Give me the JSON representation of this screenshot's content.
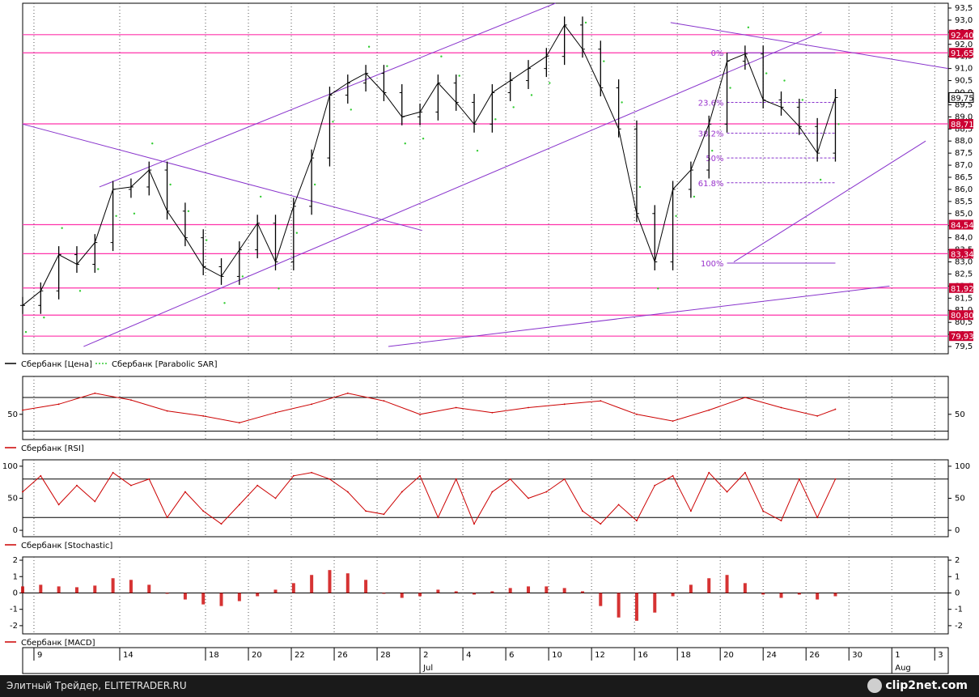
{
  "chart_data": [
    {
      "type": "candlestick",
      "name": "price-panel",
      "ylim": [
        79.2,
        93.7
      ],
      "yticks": [
        "93,5",
        "93,0",
        "92,5",
        "92,0",
        "91,5",
        "91,0",
        "90,5",
        "90,0",
        "89,5",
        "89,0",
        "88,5",
        "88,0",
        "87,5",
        "87,0",
        "86,5",
        "86,0",
        "85,5",
        "85,0",
        "84,5",
        "84,0",
        "83,5",
        "83,0",
        "82,5",
        "82,0",
        "81,5",
        "81,0",
        "80,5",
        "80,0",
        "79,5"
      ],
      "ytick_values": [
        93.5,
        93.0,
        92.5,
        92.0,
        91.5,
        91.0,
        90.5,
        90.0,
        89.5,
        89.0,
        88.5,
        88.0,
        87.5,
        87.0,
        86.5,
        86.0,
        85.5,
        85.0,
        84.5,
        84.0,
        83.5,
        83.0,
        82.5,
        82.0,
        81.5,
        81.0,
        80.5,
        80.0,
        79.5
      ],
      "x": [
        0,
        8,
        16,
        24,
        32,
        40,
        48,
        56,
        64,
        72,
        80,
        88,
        96,
        104,
        112,
        120,
        128,
        136,
        144,
        152,
        160,
        168,
        176,
        184,
        192,
        200,
        208,
        216,
        224,
        232,
        240,
        248,
        256,
        264,
        272,
        280,
        288,
        296,
        304,
        312,
        320,
        328,
        336,
        344,
        352,
        360
      ],
      "close": [
        81.2,
        81.8,
        83.3,
        82.9,
        83.8,
        86.0,
        86.1,
        86.8,
        85.1,
        84.0,
        82.8,
        82.4,
        83.5,
        84.6,
        83.0,
        85.3,
        87.3,
        89.9,
        90.4,
        90.8,
        90.0,
        89.0,
        89.2,
        90.4,
        89.6,
        88.7,
        90.0,
        90.5,
        91.0,
        91.5,
        92.8,
        91.8,
        90.2,
        88.5,
        85.0,
        83.0,
        86.0,
        86.8,
        88.7,
        91.3,
        91.6,
        89.7,
        89.4,
        88.6,
        87.5,
        89.8
      ],
      "close_label": "89,75",
      "horizontal_levels": [
        {
          "value": 92.4,
          "label": "92,40"
        },
        {
          "value": 91.65,
          "label": "91,65"
        },
        {
          "value": 88.71,
          "label": "88,71"
        },
        {
          "value": 84.54,
          "label": "84,54"
        },
        {
          "value": 83.34,
          "label": "83,34"
        },
        {
          "value": 81.92,
          "label": "81,92"
        },
        {
          "value": 80.8,
          "label": "80,80"
        },
        {
          "value": 79.93,
          "label": "79,93"
        }
      ],
      "fibonacci": {
        "high": 91.65,
        "low": 82.95,
        "levels": [
          {
            "ratio": 0,
            "label": "0%"
          },
          {
            "ratio": 0.236,
            "label": "23.6%"
          },
          {
            "ratio": 0.382,
            "label": "38.2%"
          },
          {
            "ratio": 0.5,
            "label": "50%"
          },
          {
            "ratio": 0.618,
            "label": "61.8%"
          },
          {
            "ratio": 1,
            "label": "100%"
          }
        ],
        "x_start": 312,
        "x_end": 360
      },
      "trendlines": [
        {
          "x1": 34,
          "y1": 86.1,
          "x2": 236,
          "y2": 93.7
        },
        {
          "x1": 27,
          "y1": 79.5,
          "x2": 354,
          "y2": 92.5
        },
        {
          "x1": 0,
          "y1": 88.7,
          "x2": 177,
          "y2": 84.3
        },
        {
          "x1": 287,
          "y1": 92.9,
          "x2": 410,
          "y2": 91.0
        },
        {
          "x1": 315,
          "y1": 83.0,
          "x2": 400,
          "y2": 88.0
        },
        {
          "x1": 162,
          "y1": 79.5,
          "x2": 384,
          "y2": 82.0
        }
      ],
      "series": [
        {
          "name": "Сбербанк [Цена]",
          "color": "#000000"
        },
        {
          "name": "Сбербанк [Parabolic SAR]",
          "color": "#33cc33"
        }
      ]
    },
    {
      "type": "line",
      "name": "rsi-panel",
      "ylim": [
        20,
        95
      ],
      "yticks": [
        "50"
      ],
      "ytick_values": [
        50
      ],
      "ref_lines": [
        70,
        30
      ],
      "x": [
        0,
        16,
        32,
        48,
        64,
        80,
        96,
        112,
        128,
        144,
        160,
        176,
        192,
        208,
        224,
        240,
        256,
        272,
        288,
        304,
        320,
        336,
        352,
        360
      ],
      "values": [
        55,
        62,
        75,
        67,
        54,
        48,
        40,
        52,
        62,
        75,
        66,
        50,
        58,
        52,
        58,
        62,
        66,
        50,
        42,
        55,
        70,
        58,
        48,
        56
      ],
      "series": [
        {
          "name": "Сбербанк [RSI]",
          "color": "#cc0000"
        }
      ]
    },
    {
      "type": "line",
      "name": "stochastic-panel",
      "ylim": [
        -10,
        110
      ],
      "yticks": [
        "100",
        "50",
        "0"
      ],
      "ytick_values": [
        100,
        50,
        0
      ],
      "ref_lines": [
        80,
        20
      ],
      "x": [
        0,
        8,
        16,
        24,
        32,
        40,
        48,
        56,
        64,
        72,
        80,
        88,
        96,
        104,
        112,
        120,
        128,
        136,
        144,
        152,
        160,
        168,
        176,
        184,
        192,
        200,
        208,
        216,
        224,
        232,
        240,
        248,
        256,
        264,
        272,
        280,
        288,
        296,
        304,
        312,
        320,
        328,
        336,
        344,
        352,
        360
      ],
      "values": [
        60,
        85,
        40,
        70,
        45,
        90,
        70,
        80,
        20,
        60,
        30,
        10,
        40,
        70,
        50,
        85,
        90,
        80,
        60,
        30,
        25,
        60,
        85,
        20,
        80,
        10,
        60,
        80,
        50,
        60,
        80,
        30,
        10,
        40,
        15,
        70,
        85,
        30,
        90,
        60,
        90,
        30,
        15,
        80,
        20,
        80
      ],
      "series": [
        {
          "name": "Сбербанк [Stochastic]",
          "color": "#cc0000"
        }
      ]
    },
    {
      "type": "bar",
      "name": "macd-panel",
      "ylim": [
        -2.5,
        2.2
      ],
      "yticks": [
        "2",
        "1",
        "0",
        "-1",
        "-2"
      ],
      "ytick_values": [
        2,
        1,
        0,
        -1,
        -2
      ],
      "x": [
        0,
        8,
        16,
        24,
        32,
        40,
        48,
        56,
        64,
        72,
        80,
        88,
        96,
        104,
        112,
        120,
        128,
        136,
        144,
        152,
        160,
        168,
        176,
        184,
        192,
        200,
        208,
        216,
        224,
        232,
        240,
        248,
        256,
        264,
        272,
        280,
        288,
        296,
        304,
        312,
        320,
        328,
        336,
        344,
        352,
        360
      ],
      "values": [
        0.4,
        0.5,
        0.4,
        0.35,
        0.45,
        0.9,
        0.8,
        0.5,
        0.0,
        -0.4,
        -0.7,
        -0.8,
        -0.5,
        -0.2,
        0.2,
        0.6,
        1.1,
        1.4,
        1.2,
        0.8,
        0.0,
        -0.3,
        -0.2,
        0.2,
        0.1,
        -0.1,
        0.1,
        0.3,
        0.4,
        0.4,
        0.3,
        0.1,
        -0.8,
        -1.5,
        -1.7,
        -1.2,
        -0.2,
        0.5,
        0.9,
        1.1,
        0.6,
        -0.1,
        -0.3,
        -0.1,
        -0.4,
        -0.2
      ],
      "series": [
        {
          "name": "Сбербанк [MACD]",
          "color": "#cc0000"
        }
      ]
    }
  ],
  "x_axis": {
    "day_labels": [
      {
        "x": 5,
        "label": "9"
      },
      {
        "x": 43,
        "label": "14"
      },
      {
        "x": 81,
        "label": "18"
      },
      {
        "x": 100,
        "label": "20"
      },
      {
        "x": 119,
        "label": "22"
      },
      {
        "x": 138,
        "label": "26"
      },
      {
        "x": 157,
        "label": "28"
      },
      {
        "x": 176,
        "label": "2"
      },
      {
        "x": 195,
        "label": "4"
      },
      {
        "x": 214,
        "label": "6"
      },
      {
        "x": 233,
        "label": "10"
      },
      {
        "x": 252,
        "label": "12"
      },
      {
        "x": 271,
        "label": "16"
      },
      {
        "x": 290,
        "label": "18"
      },
      {
        "x": 309,
        "label": "20"
      },
      {
        "x": 328,
        "label": "24"
      },
      {
        "x": 347,
        "label": "26"
      },
      {
        "x": 366,
        "label": "30"
      },
      {
        "x": 385,
        "label": "1"
      },
      {
        "x": 404,
        "label": "3"
      }
    ],
    "month_labels": [
      {
        "x": 176,
        "label": "Jul"
      },
      {
        "x": 385,
        "label": "Aug"
      }
    ]
  },
  "footer": {
    "text": "Элитный Трейдер, ELITETRADER.RU",
    "brand": "clip2net.com"
  },
  "colors": {
    "price": "#000000",
    "sar": "#33cc33",
    "level": "#ff33aa",
    "tag": "#cc0033",
    "trend": "#8833cc",
    "indicator": "#cc0000",
    "grid": "#000000"
  }
}
